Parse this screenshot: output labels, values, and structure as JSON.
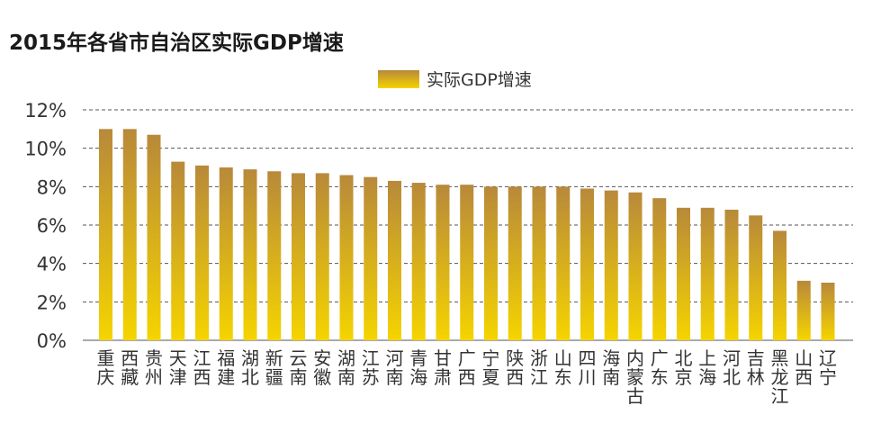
{
  "chart_data": {
    "type": "bar",
    "title": "2015年各省市自治区实际GDP增速",
    "legend": "实际GDP增速",
    "legend_position": "top-center",
    "grid": true,
    "ylim": [
      0,
      12
    ],
    "yticks": [
      "0%",
      "2%",
      "4%",
      "6%",
      "8%",
      "10%",
      "12%"
    ],
    "categories": [
      "重庆",
      "西藏",
      "贵州",
      "天津",
      "江西",
      "福建",
      "湖北",
      "新疆",
      "云南",
      "安徽",
      "湖南",
      "江苏",
      "河南",
      "青海",
      "甘肃",
      "广西",
      "宁夏",
      "陕西",
      "浙江",
      "山东",
      "四川",
      "海南",
      "内蒙古",
      "广东",
      "北京",
      "上海",
      "河北",
      "吉林",
      "黑龙江",
      "山西",
      "辽宁"
    ],
    "series": [
      {
        "name": "实际GDP增速",
        "values": [
          11.0,
          11.0,
          10.7,
          9.3,
          9.1,
          9.0,
          8.9,
          8.8,
          8.7,
          8.7,
          8.6,
          8.5,
          8.3,
          8.2,
          8.1,
          8.1,
          8.0,
          8.0,
          8.0,
          8.0,
          7.9,
          7.8,
          7.7,
          7.4,
          6.9,
          6.9,
          6.8,
          6.5,
          5.7,
          3.1,
          3.0
        ]
      }
    ],
    "colors": {
      "bar_top": "#b8893a",
      "bar_bottom": "#f5d400",
      "grid": "#555555",
      "text": "#333333"
    }
  }
}
